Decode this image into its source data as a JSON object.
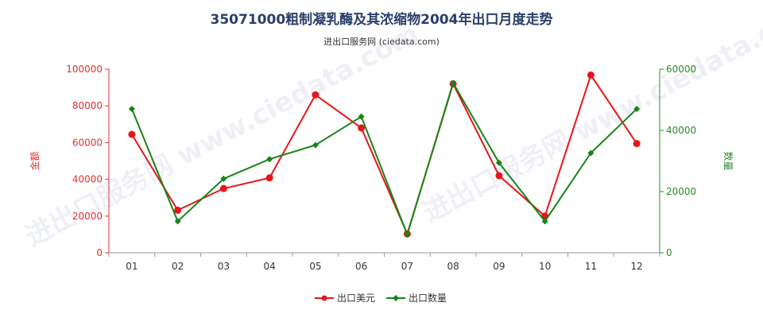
{
  "chart_data": {
    "type": "line",
    "title": "35071000粗制凝乳酶及其浓缩物2004年出口月度走势",
    "subtitle": "进出口服务网 (ciedata.com)",
    "watermark": "进出口服务网 www.ciedata.com",
    "categories": [
      "01",
      "02",
      "03",
      "04",
      "05",
      "06",
      "07",
      "08",
      "09",
      "10",
      "11",
      "12"
    ],
    "y_left": {
      "label": "金额",
      "ylim": [
        0,
        100000
      ],
      "ticks": [
        "0",
        "20000",
        "40000",
        "60000",
        "80000",
        "100000"
      ],
      "color": "#e03030"
    },
    "y_right": {
      "label": "数量",
      "ylim": [
        0,
        60000
      ],
      "ticks": [
        "0",
        "20000",
        "40000",
        "60000"
      ],
      "color": "#2a8a2a"
    },
    "series": [
      {
        "name": "出口美元",
        "axis": "left",
        "color": "#e8161b",
        "values": [
          64500,
          23200,
          35000,
          40800,
          86000,
          68000,
          10300,
          92000,
          42000,
          20000,
          96800,
          59500
        ]
      },
      {
        "name": "出口数量",
        "axis": "right",
        "color": "#168416",
        "values": [
          47000,
          10300,
          24200,
          30600,
          35200,
          44500,
          6000,
          55500,
          29400,
          10300,
          32600,
          47000
        ]
      }
    ],
    "grid": false,
    "legend": "bottom-center"
  }
}
